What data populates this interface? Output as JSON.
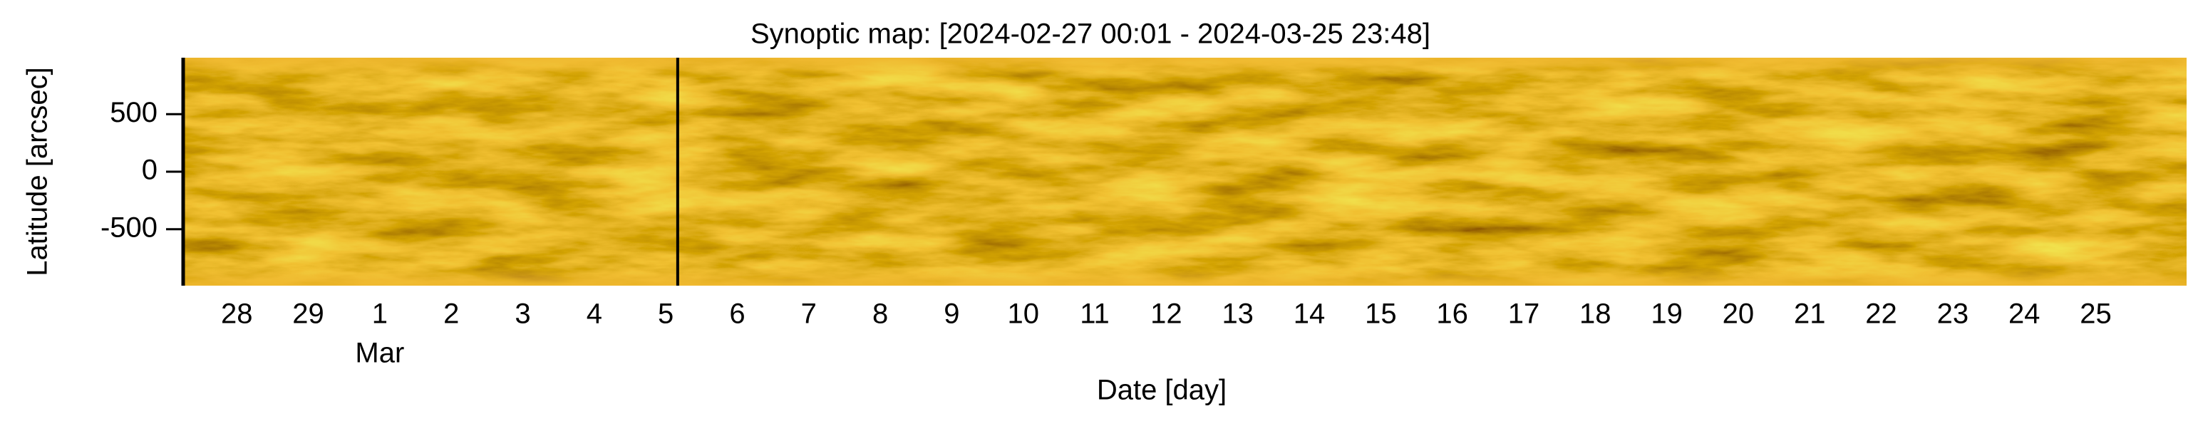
{
  "chart_data": {
    "type": "image",
    "title": "Synoptic map: [2024-02-27 00:01 - 2024-03-25 23:48]",
    "xlabel": "Date [day]",
    "ylabel": "Latitude [arcsec]",
    "xlim": [
      "2024-02-27T06:00",
      "2024-03-26T06:30"
    ],
    "ylim": [
      -990,
      990
    ],
    "yticks": [
      -500,
      0,
      500
    ],
    "xticks": [
      {
        "value": "2024-02-28",
        "label": "28"
      },
      {
        "value": "2024-02-29",
        "label": "29"
      },
      {
        "value": "2024-03-01",
        "label": "1"
      },
      {
        "value": "2024-03-02",
        "label": "2"
      },
      {
        "value": "2024-03-03",
        "label": "3"
      },
      {
        "value": "2024-03-04",
        "label": "4"
      },
      {
        "value": "2024-03-05",
        "label": "5"
      },
      {
        "value": "2024-03-06",
        "label": "6"
      },
      {
        "value": "2024-03-07",
        "label": "7"
      },
      {
        "value": "2024-03-08",
        "label": "8"
      },
      {
        "value": "2024-03-09",
        "label": "9"
      },
      {
        "value": "2024-03-10",
        "label": "10"
      },
      {
        "value": "2024-03-11",
        "label": "11"
      },
      {
        "value": "2024-03-12",
        "label": "12"
      },
      {
        "value": "2024-03-13",
        "label": "13"
      },
      {
        "value": "2024-03-14",
        "label": "14"
      },
      {
        "value": "2024-03-15",
        "label": "15"
      },
      {
        "value": "2024-03-16",
        "label": "16"
      },
      {
        "value": "2024-03-17",
        "label": "17"
      },
      {
        "value": "2024-03-18",
        "label": "18"
      },
      {
        "value": "2024-03-19",
        "label": "19"
      },
      {
        "value": "2024-03-20",
        "label": "20"
      },
      {
        "value": "2024-03-21",
        "label": "21"
      },
      {
        "value": "2024-03-22",
        "label": "22"
      },
      {
        "value": "2024-03-23",
        "label": "23"
      },
      {
        "value": "2024-03-24",
        "label": "24"
      },
      {
        "value": "2024-03-25",
        "label": "25"
      }
    ],
    "x_secondary_labels": [
      {
        "value": "2024-03-01",
        "label": "Mar"
      }
    ],
    "vline": "2024-03-05T04:00",
    "vline_color": "#000000",
    "color": "#c8900a"
  }
}
